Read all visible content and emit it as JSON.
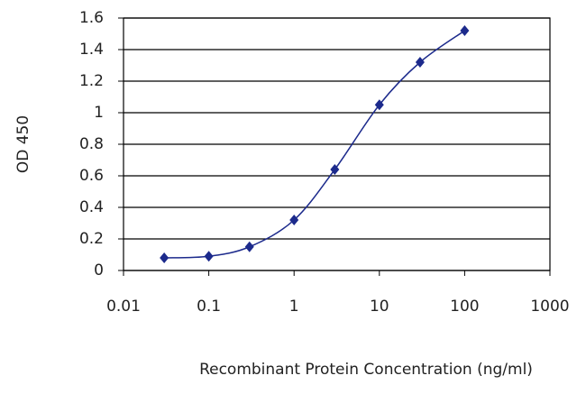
{
  "chart_data": {
    "type": "line",
    "x_label": "Recombinant Protein Concentration (ng/ml)",
    "y_label": "OD 450",
    "x": [
      0.03,
      0.1,
      0.3,
      1,
      3,
      10,
      30,
      100
    ],
    "series": [
      {
        "color": "#1c2a8c",
        "values": [
          0.08,
          0.09,
          0.15,
          0.32,
          0.64,
          1.05,
          1.32,
          1.52
        ]
      }
    ],
    "xscale": "log",
    "xlim": [
      0.01,
      1000
    ],
    "xticks": [
      0.01,
      0.1,
      1,
      10,
      100,
      1000
    ],
    "ylim": [
      0,
      1.6
    ],
    "yticks": [
      0,
      0.2,
      0.4,
      0.6,
      0.8,
      1,
      1.2,
      1.4,
      1.6
    ],
    "grid": true
  }
}
